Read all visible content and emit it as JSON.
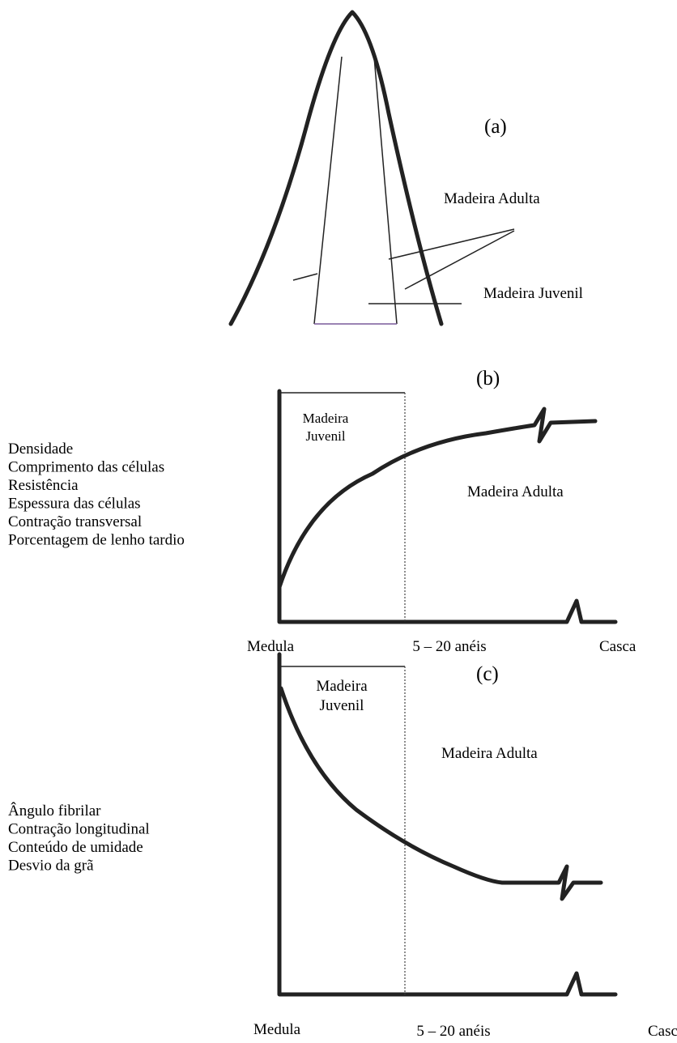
{
  "panels": {
    "a": {
      "label": "(a)",
      "adult_label": "Madeira Adulta",
      "juvenile_label": "Madeira Juvenil"
    },
    "b": {
      "label": "(b)",
      "juvenile_label": [
        "Madeira",
        "Juvenil"
      ],
      "adult_label": "Madeira Adulta",
      "properties": [
        "Densidade",
        "Comprimento das células",
        "Resistência",
        "Espessura das células",
        "Contração transversal",
        "Porcentagem de lenho tardio"
      ],
      "x_labels": [
        "Medula",
        "5 – 20 anéis",
        "Casca"
      ]
    },
    "c": {
      "label": "(c)",
      "juvenile_label": [
        "Madeira",
        "Juvenil"
      ],
      "adult_label": "Madeira Adulta",
      "properties": [
        "Ângulo fibrilar",
        "Contração longitudinal",
        "Conteúdo de umidade",
        "Desvio da grã"
      ],
      "x_labels": [
        "Medula",
        "5 – 20 anéis",
        "Casca"
      ]
    }
  }
}
